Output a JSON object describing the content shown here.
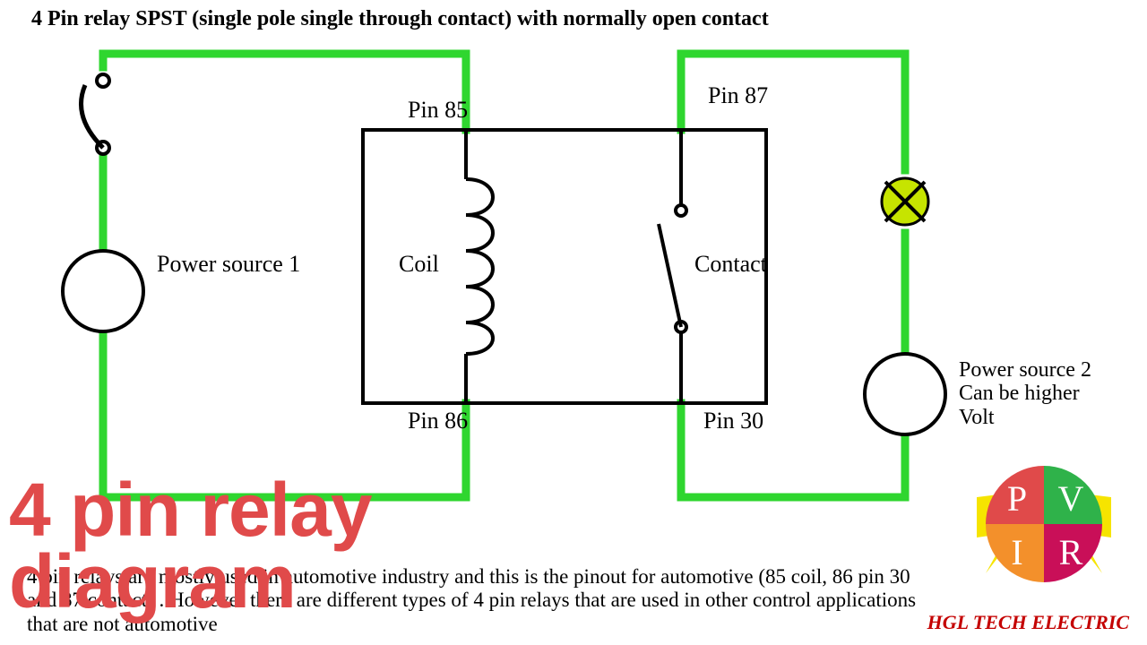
{
  "title": "4 Pin relay SPST (single pole single through contact) with normally open contact",
  "labels": {
    "pin85": "Pin  85",
    "pin86": "Pin  86",
    "pin87": "Pin  87",
    "pin30": "Pin  30",
    "coil": "Coil",
    "contact": "Contact",
    "power1": "Power source 1",
    "power2_line1": "Power source 2",
    "power2_line2": "Can be higher",
    "power2_line3": "Volt"
  },
  "overlay_title": "4 pin relay diagram",
  "brand": "HGL TECH ELECTRIC",
  "description": "4 pin relays are mostly used in automotive industry and this is the pinout for automotive (85 coil, 86 pin 30 and 87 contact) . However there are different types of 4 pin relays that are used in other control applications that are not automotive",
  "logo": {
    "letters": [
      "P",
      "V",
      "I",
      "R"
    ],
    "colors": [
      "#e04a4a",
      "#2fb24a",
      "#f3902b",
      "#c90f58"
    ],
    "bolt_color": "#f6e400"
  },
  "colors": {
    "wire": "#2fd62f",
    "outline": "#000000",
    "lamp": "#c6e400"
  },
  "stroke": {
    "wire_width": 9,
    "outline_width": 4,
    "relay_box_width": 4
  }
}
